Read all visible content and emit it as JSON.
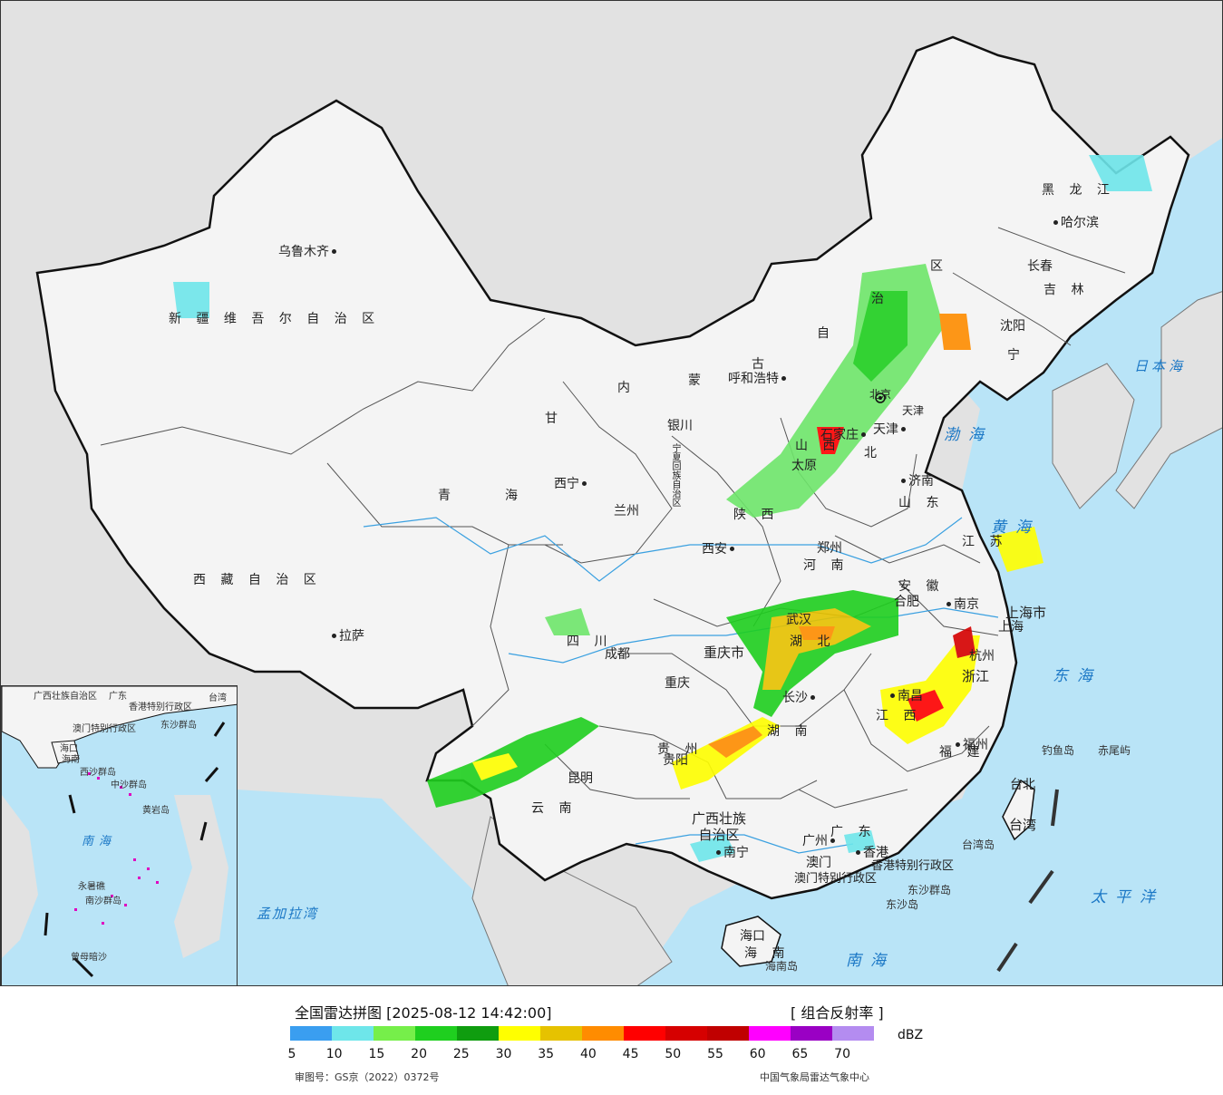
{
  "colors": {
    "sea": "#b9e4f7",
    "land": "#f4f4f4",
    "border": "#111111",
    "outside": "#e2e2e2"
  },
  "provinces": {
    "xinjiang": "新 疆 维 吾 尔 自 治 区",
    "xizang": "西 藏 自 治 区",
    "qinghai1": "青",
    "qinghai2": "海",
    "gansu": "甘",
    "neimenggu1": "内",
    "neimenggu2": "蒙",
    "neimenggu3": "古",
    "neimenggu4": "自",
    "neimenggu5": "治",
    "neimenggu6": "区",
    "heilongjiang": "黑 龙 江",
    "jilin": "吉 林",
    "liaoning": "宁",
    "hebei": "北",
    "shanxi": "山 西",
    "shaanxi": "陕 西",
    "henan": "河 南",
    "shandong": "山 东",
    "jiangsu": "江 苏",
    "anhui": "安 徽",
    "shanghai": "上海市",
    "zhejiang": "浙江",
    "hubei": "湖 北",
    "hunan": "湖 南",
    "jiangxi": "江 西",
    "fujian": "福 建",
    "sichuan": "四 川",
    "chongqing": "重庆市",
    "guizhou": "贵 州",
    "yunnan": "云 南",
    "guangxi": "广西壮族\n自治区",
    "guangdong": "广 东",
    "hainan": "海 南",
    "taiwan": "台湾",
    "ningxia": "宁夏回族自治区",
    "beijing": "北京",
    "tianjin": "天津",
    "hongkong": "香港特别行政区",
    "macao": "澳门特别行政区"
  },
  "cities": {
    "urumqi": "乌鲁木齐",
    "lhasa": "拉萨",
    "xining": "西宁",
    "lanzhou": "兰州",
    "yinchuan": "银川",
    "hohhot": "呼和浩特",
    "harbin": "哈尔滨",
    "changchun": "长春",
    "shenyang": "沈阳",
    "tianjin": "天津",
    "shijiazhuang": "石家庄",
    "taiyuan": "太原",
    "jinan": "济南",
    "zhengzhou": "郑州",
    "xian": "西安",
    "nanjing": "南京",
    "hefei": "合肥",
    "shanghai": "上海",
    "hangzhou": "杭州",
    "wuhan": "武汉",
    "changsha": "长沙",
    "nanchang": "南昌",
    "fuzhou": "福州",
    "chengdu": "成都",
    "chongqing": "重庆",
    "guiyang": "贵阳",
    "kunming": "昆明",
    "nanning": "南宁",
    "guangzhou": "广州",
    "haikou": "海口",
    "taibei": "台北",
    "hongkong": "香港",
    "macao": "澳门"
  },
  "seas": {
    "japan_sea": "日本海",
    "bohai": "渤海",
    "yellow_sea": "黄海",
    "east_sea": "东海",
    "south_sea": "南海",
    "pacific": "太平洋",
    "bengal": "孟加拉湾"
  },
  "islands": {
    "diaoyu": "钓鱼岛",
    "chiwei": "赤尾屿",
    "taiwan_island": "台湾岛",
    "dongsha_group": "东沙群岛",
    "dongsha": "东沙岛",
    "hainan_island": "海南岛"
  },
  "inset": {
    "labels": [
      "广西壮族自治区",
      "广东",
      "香港特别行政区",
      "澳门特别行政区",
      "台湾",
      "东沙群岛",
      "海口",
      "海南",
      "西沙群岛",
      "中沙群岛",
      "黄岩岛",
      "南海",
      "永暑礁",
      "南沙群岛",
      "曾母暗沙"
    ]
  },
  "legend": {
    "title": "全国雷达拼图 [2025-08-12 14:42:00]",
    "product": "[ 组合反射率 ]",
    "unit": "dBZ",
    "colors": [
      "#3a9ef0",
      "#6ee6ea",
      "#76ef4a",
      "#1fcf1f",
      "#0f9d0f",
      "#ffff00",
      "#e6c200",
      "#ff8c00",
      "#ff0000",
      "#d60000",
      "#c00000",
      "#ff00ff",
      "#9a00c4",
      "#b48cf0"
    ],
    "ticks": [
      "5",
      "10",
      "15",
      "20",
      "25",
      "30",
      "35",
      "40",
      "45",
      "50",
      "55",
      "60",
      "65",
      "70"
    ],
    "review_no": "审图号：GS京（2022）0372号",
    "credit": "中国气象局雷达气象中心"
  }
}
